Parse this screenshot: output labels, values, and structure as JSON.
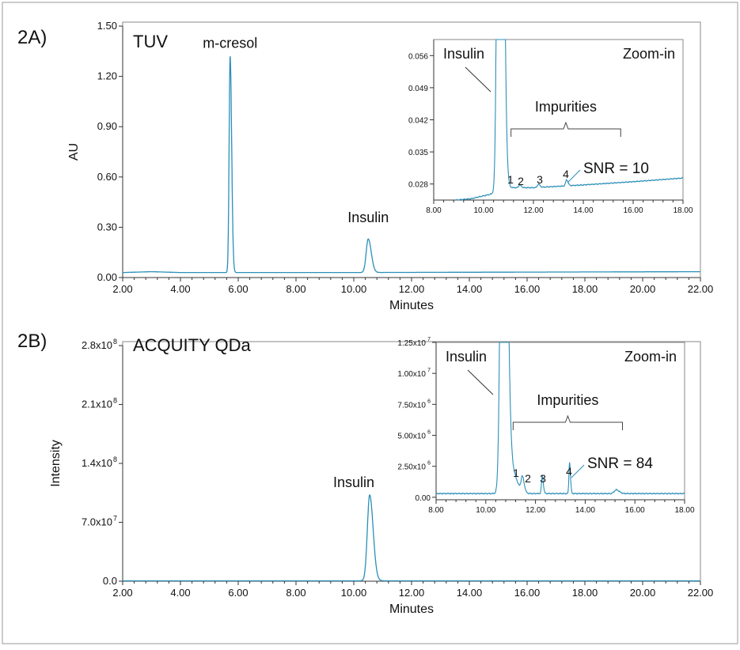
{
  "chart_data": [
    {
      "type": "line",
      "panel_label": "2A)",
      "title": "TUV",
      "xlabel": "Minutes",
      "ylabel": "AU",
      "xlim": [
        2,
        22
      ],
      "ylim": [
        0,
        1.5
      ],
      "xticks": [
        "2.00",
        "4.00",
        "6.00",
        "8.00",
        "10.00",
        "12.00",
        "14.00",
        "16.00",
        "18.00",
        "20.00",
        "22.00"
      ],
      "yticks": [
        "0.00",
        "0.30",
        "0.60",
        "0.90",
        "1.20",
        "1.50"
      ],
      "baseline": [
        [
          2,
          0.03
        ],
        [
          3,
          0.035
        ],
        [
          4,
          0.03
        ],
        [
          10,
          0.03
        ],
        [
          22,
          0.035
        ]
      ],
      "peaks": [
        {
          "x": 5.72,
          "h": 1.29,
          "w": 0.035
        },
        {
          "x": 10.5,
          "h": 0.2,
          "w": 0.07
        }
      ],
      "annotations": [
        {
          "text": "m-cresol",
          "x": 5.72,
          "y": 1.37
        },
        {
          "text": "Insulin",
          "x": 10.5,
          "y": 0.33
        }
      ],
      "inset": {
        "title": "Zoom-in",
        "xlim": [
          8,
          18
        ],
        "ylim": [
          0.0245,
          0.0595
        ],
        "xticks": [
          "8.00",
          "10.00",
          "12.00",
          "14.00",
          "16.00",
          "18.00"
        ],
        "yticks": [
          "0.028",
          "0.035",
          "0.042",
          "0.049",
          "0.056"
        ],
        "baseline": [
          [
            8.9,
            0.0245
          ],
          [
            9.5,
            0.0248
          ],
          [
            10.3,
            0.0258
          ],
          [
            11.1,
            0.0272
          ],
          [
            12,
            0.0272
          ],
          [
            14,
            0.0278
          ],
          [
            16,
            0.0285
          ],
          [
            18,
            0.0293
          ]
        ],
        "peaks": [
          {
            "x": 10.65,
            "h": 0.2,
            "w": 0.08
          },
          {
            "x": 11.45,
            "h": 0.0006,
            "w": 0.04
          },
          {
            "x": 12.2,
            "h": 0.0007,
            "w": 0.04
          },
          {
            "x": 13.33,
            "h": 0.0013,
            "w": 0.04
          }
        ],
        "insulin_label": "Insulin",
        "impurities_label": "Impurities",
        "impurity_numbers": [
          "1",
          "2",
          "3",
          "4"
        ],
        "snr_label": "SNR = 10"
      }
    },
    {
      "type": "line",
      "panel_label": "2B)",
      "title": "ACQUITY QDa",
      "xlabel": "Minutes",
      "ylabel": "Intensity",
      "xlim": [
        2,
        22
      ],
      "ylim": [
        0,
        280000000.0
      ],
      "xticks": [
        "2.00",
        "4.00",
        "6.00",
        "8.00",
        "10.00",
        "12.00",
        "14.00",
        "16.00",
        "18.00",
        "20.00",
        "22.00"
      ],
      "yticks": [
        "0.0",
        "7.0x10",
        "1.4x10",
        "2.1x10",
        "2.8x10"
      ],
      "ytick_exponents": [
        "",
        "7",
        "8",
        "8",
        "8"
      ],
      "baseline": [
        [
          2,
          500000.0
        ],
        [
          22,
          500000.0
        ]
      ],
      "peaks": [
        {
          "x": 10.55,
          "h": 102000000.0,
          "w": 0.08
        }
      ],
      "annotations": [
        {
          "text": "Insulin",
          "x": 10.0,
          "y": 112000000.0
        }
      ],
      "inset": {
        "title": "Zoom-in",
        "xlim": [
          8,
          18
        ],
        "ylim": [
          -200000.0,
          12500000.0
        ],
        "xticks": [
          "8.00",
          "10.00",
          "12.00",
          "14.00",
          "16.00",
          "18.00"
        ],
        "yticks": [
          "0.00",
          "2.50x10",
          "5.00x10",
          "7.50x10",
          "1.00x10",
          "1.25x10"
        ],
        "ytick_exponents": [
          "",
          "6",
          "6",
          "6",
          "7",
          "7"
        ],
        "baseline": [
          [
            8,
            300000.0
          ],
          [
            18,
            300000.0
          ]
        ],
        "peaks": [
          {
            "x": 10.7,
            "h": 50000000.0,
            "w": 0.09
          },
          {
            "x": 11.0,
            "h": 2000000.0,
            "w": 0.15
          },
          {
            "x": 11.47,
            "h": 1200000.0,
            "w": 0.05
          },
          {
            "x": 12.27,
            "h": 1400000.0,
            "w": 0.03
          },
          {
            "x": 13.37,
            "h": 2500000.0,
            "w": 0.025
          },
          {
            "x": 15.25,
            "h": 300000.0,
            "w": 0.08
          }
        ],
        "insulin_label": "Insulin",
        "impurities_label": "Impurities",
        "impurity_numbers": [
          "1",
          "2",
          "3",
          "4"
        ],
        "snr_label": "SNR = 84"
      }
    }
  ],
  "colors": {
    "trace": "#2b8fb8",
    "frame": "#555555"
  }
}
